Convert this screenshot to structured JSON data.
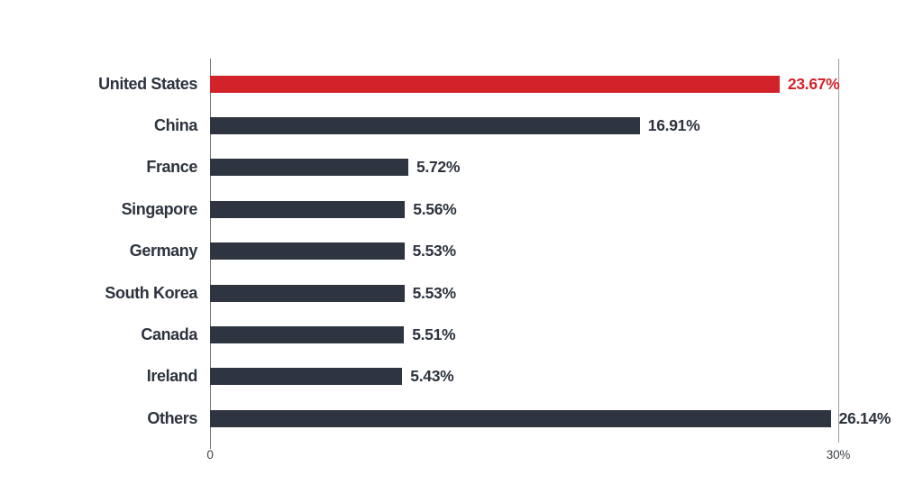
{
  "chart_data": {
    "type": "bar",
    "orientation": "horizontal",
    "title": "",
    "xlabel": "",
    "ylabel": "",
    "categories": [
      "United States",
      "China",
      "France",
      "Singapore",
      "Germany",
      "South Korea",
      "Canada",
      "Ireland",
      "Others"
    ],
    "values": [
      23.67,
      16.91,
      5.72,
      5.56,
      5.53,
      5.53,
      5.51,
      5.43,
      26.14
    ],
    "value_labels": [
      "23.67%",
      "16.91%",
      "5.72%",
      "5.56%",
      "5.53%",
      "5.53%",
      "5.51%",
      "5.43%",
      "26.14%"
    ],
    "highlight_index": 0,
    "xlim": [
      0,
      30
    ],
    "x_tick_labels": {
      "zero": "0",
      "max": "30%"
    },
    "grid": "single-vertical-line-at-30",
    "legend": "none",
    "colors": {
      "highlight_bar": "#d2232a",
      "default_bar": "#2e3540",
      "category_label": "#2d333e",
      "value_label": "#2d333e",
      "highlight_value_label": "#d2232a",
      "axis_line": "#75797e",
      "grid_line": "#9b9b9b",
      "tick_label": "#3e434b",
      "background": "#ffffff"
    }
  }
}
